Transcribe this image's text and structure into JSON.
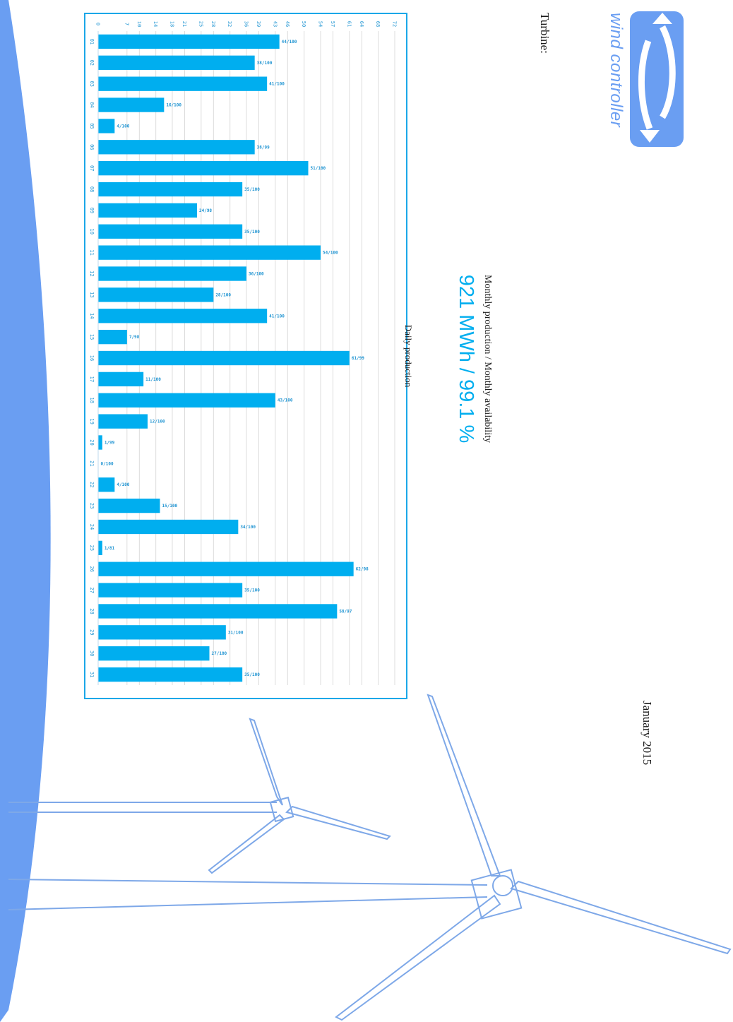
{
  "brand": {
    "name": "wind controller",
    "color": "#6a9ef2"
  },
  "report": {
    "turbine_label": "Turbine:",
    "period": "January 2015",
    "kpi_title": "Monthly production / Monthly availability",
    "kpi_value": "921 MWh / 99.1 %",
    "accent_color": "#00aeef"
  },
  "chart_data": {
    "type": "bar",
    "title": "Daily production",
    "xlabel": "",
    "ylabel": "",
    "ylim": [
      0,
      72
    ],
    "yticks": [
      0,
      7,
      10,
      14,
      18,
      21,
      25,
      28,
      32,
      36,
      39,
      43,
      46,
      50,
      54,
      57,
      61,
      64,
      68,
      72
    ],
    "categories": [
      "01",
      "02",
      "03",
      "04",
      "05",
      "06",
      "07",
      "08",
      "09",
      "10",
      "11",
      "12",
      "13",
      "14",
      "15",
      "16",
      "17",
      "18",
      "19",
      "20",
      "21",
      "22",
      "23",
      "24",
      "25",
      "26",
      "27",
      "28",
      "29",
      "30",
      "31"
    ],
    "values": [
      44,
      38,
      41,
      16,
      4,
      38,
      51,
      35,
      24,
      35,
      54,
      36,
      28,
      41,
      7,
      61,
      11,
      43,
      12,
      1,
      0,
      4,
      15,
      34,
      1,
      62,
      35,
      58,
      31,
      27,
      35
    ],
    "labels": [
      "44/100",
      "38/100",
      "41/100",
      "16/100",
      "4/100",
      "38/99",
      "51/100",
      "35/100",
      "24/98",
      "35/100",
      "54/100",
      "36/100",
      "28/100",
      "41/100",
      "7/98",
      "61/99",
      "11/100",
      "43/100",
      "12/100",
      "1/99",
      "0/100",
      "4/100",
      "15/100",
      "34/100",
      "1/81",
      "62/98",
      "35/100",
      "58/97",
      "31/100",
      "27/100",
      "35/100"
    ],
    "bar_color": "#00aeef",
    "grid": true
  },
  "icons": [
    "wind-controller-logo-icon",
    "wind-turbine-illustration-icon"
  ]
}
